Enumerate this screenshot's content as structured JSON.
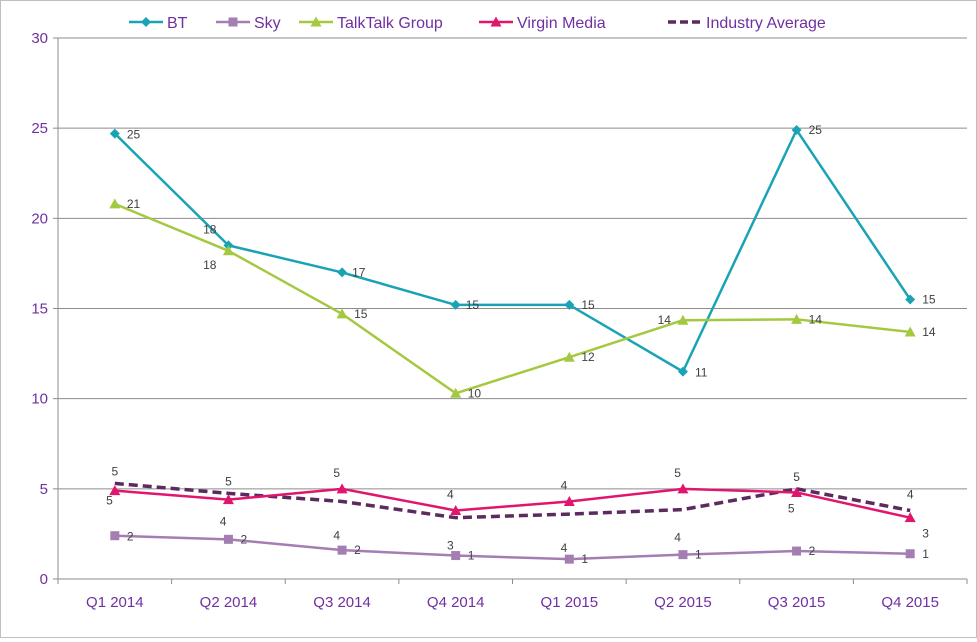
{
  "chart_data": {
    "type": "line",
    "title": "",
    "xlabel": "",
    "ylabel": "",
    "categories": [
      "Q1 2014",
      "Q2 2014",
      "Q3 2014",
      "Q4 2014",
      "Q1 2015",
      "Q2 2015",
      "Q3 2015",
      "Q4 2015"
    ],
    "ylim": [
      0,
      30
    ],
    "yticks": [
      "0",
      "5",
      "10",
      "15",
      "20",
      "25",
      "30"
    ],
    "grid": true,
    "legend_position": "top",
    "series": [
      {
        "name": "BT",
        "color": "#1aa3b6",
        "marker": "diamond",
        "dash": false,
        "values": [
          24.7,
          18.5,
          17.0,
          15.2,
          15.2,
          11.5,
          24.9,
          15.5
        ],
        "labels": [
          "25",
          "18",
          "17",
          "15",
          "15",
          "11",
          "25",
          "15"
        ]
      },
      {
        "name": "Sky",
        "color": "#a47db2",
        "marker": "square",
        "dash": false,
        "values": [
          2.4,
          2.2,
          1.6,
          1.3,
          1.1,
          1.35,
          1.55,
          1.4
        ],
        "labels": [
          "2",
          "2",
          "2",
          "1",
          "1",
          "1",
          "2",
          "1"
        ]
      },
      {
        "name": "TalkTalk Group",
        "color": "#a4c940",
        "marker": "triangle",
        "dash": false,
        "values": [
          20.8,
          18.2,
          14.7,
          10.3,
          12.3,
          14.35,
          14.4,
          13.7
        ],
        "labels": [
          "21",
          "18",
          "15",
          "10",
          "12",
          "14",
          "14",
          "14"
        ]
      },
      {
        "name": "Virgin Media",
        "color": "#e0166e",
        "marker": "triangle",
        "dash": false,
        "values": [
          4.9,
          4.4,
          5.0,
          3.8,
          4.3,
          5.0,
          4.8,
          3.4
        ],
        "labels": [
          "5",
          "4",
          "5",
          "4",
          "4",
          "5",
          "5",
          "3"
        ]
      },
      {
        "name": "Industry Average",
        "color": "#5b2a5e",
        "marker": "none",
        "dash": true,
        "values": [
          5.3,
          4.75,
          4.3,
          3.4,
          3.6,
          3.85,
          5.0,
          3.8
        ],
        "labels": [
          "5",
          "5",
          "4",
          "3",
          "4",
          "4",
          "5",
          "4"
        ]
      }
    ]
  }
}
